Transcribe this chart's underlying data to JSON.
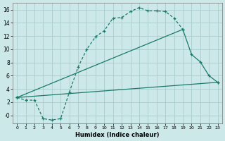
{
  "xlabel": "Humidex (Indice chaleur)",
  "background_color": "#cce8e8",
  "grid_color": "#aacccc",
  "line_color": "#1a7a6a",
  "xlim": [
    -0.5,
    23.5
  ],
  "ylim": [
    -1.2,
    17.0
  ],
  "xticks": [
    0,
    1,
    2,
    3,
    4,
    5,
    6,
    7,
    8,
    9,
    10,
    11,
    12,
    13,
    14,
    15,
    16,
    17,
    18,
    19,
    20,
    21,
    22,
    23
  ],
  "yticks": [
    0,
    2,
    4,
    6,
    8,
    10,
    12,
    14,
    16
  ],
  "ytick_labels": [
    "-0",
    "2",
    "4",
    "6",
    "8",
    "10",
    "12",
    "14",
    "16"
  ],
  "line1_x": [
    0,
    1,
    2,
    3,
    4,
    5,
    6,
    7,
    8,
    9,
    10,
    11,
    12,
    13,
    14,
    15,
    16,
    17,
    18,
    19
  ],
  "line1_y": [
    2.7,
    2.3,
    2.3,
    -0.5,
    -0.7,
    -0.5,
    3.5,
    7.3,
    10.0,
    11.9,
    12.8,
    14.7,
    14.8,
    15.7,
    16.3,
    15.8,
    15.8,
    15.7,
    14.7,
    13.0
  ],
  "line2_x": [
    0,
    19,
    20,
    21,
    22,
    23
  ],
  "line2_y": [
    2.7,
    13.0,
    9.2,
    8.1,
    6.0,
    5.0
  ],
  "line3_x": [
    0,
    23
  ],
  "line3_y": [
    2.7,
    5.0
  ]
}
